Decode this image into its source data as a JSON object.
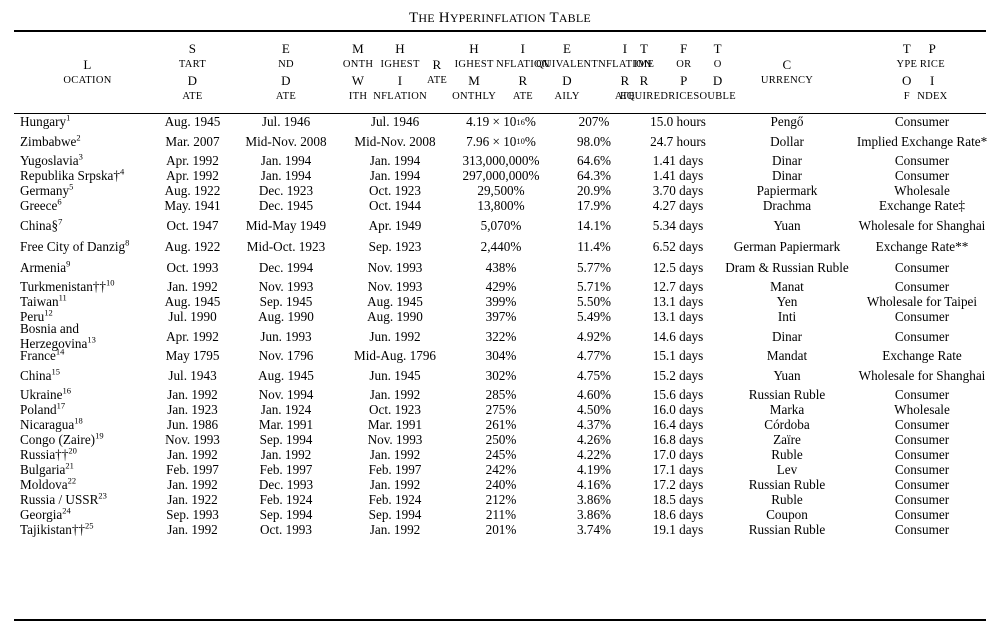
{
  "title": "The Hyperinflation Table",
  "headers": [
    {
      "key": "location",
      "label": "Location"
    },
    {
      "key": "start",
      "label": "Start Date"
    },
    {
      "key": "end",
      "label": "End Date"
    },
    {
      "key": "month_highest",
      "label": "Month With Highest Inflation Rate"
    },
    {
      "key": "monthly",
      "label": "Highest Monthly Inflation Rate"
    },
    {
      "key": "daily",
      "label": "Equivalent Daily Inflation Rate"
    },
    {
      "key": "double",
      "label": "Time Required For Prices To Double"
    },
    {
      "key": "currency",
      "label": "Currency"
    },
    {
      "key": "index",
      "label": "Type of Price Index"
    }
  ],
  "rows": [
    {
      "location": "Hungary",
      "note": "1",
      "start": "Aug. 1945",
      "end": "Jul. 1946",
      "month": "Jul. 1946",
      "monthly": "4.19 × 10",
      "monthly_exp": "16",
      "monthly_suffix": "%",
      "daily": "207%",
      "double": "15.0 hours",
      "currency": "Pengő",
      "index": "Consumer"
    },
    {
      "location": "Zimbabwe",
      "note": "2",
      "start": "Mar. 2007",
      "end": "Mid-Nov. 2008",
      "month": "Mid-Nov. 2008",
      "monthly": "7.96 × 10",
      "monthly_exp": "10",
      "monthly_suffix": "%",
      "daily": "98.0%",
      "double": "24.7 hours",
      "currency": "Dollar",
      "index": "Implied Exchange Rate*"
    },
    {
      "location": "Yugoslavia",
      "note": "3",
      "start": "Apr. 1992",
      "end": "Jan. 1994",
      "month": "Jan. 1994",
      "monthly": "313,000,000%",
      "daily": "64.6%",
      "double": "1.41 days",
      "currency": "Dinar",
      "index": "Consumer"
    },
    {
      "location": "Republika Srpska†",
      "note": "4",
      "start": "Apr. 1992",
      "end": "Jan. 1994",
      "month": "Jan. 1994",
      "monthly": "297,000,000%",
      "daily": "64.3%",
      "double": "1.41 days",
      "currency": "Dinar",
      "index": "Consumer"
    },
    {
      "location": "Germany",
      "note": "5",
      "start": "Aug. 1922",
      "end": "Dec. 1923",
      "month": "Oct. 1923",
      "monthly": "29,500%",
      "daily": "20.9%",
      "double": "3.70 days",
      "currency": "Papiermark",
      "index": "Wholesale"
    },
    {
      "location": "Greece",
      "note": "6",
      "start": "May. 1941",
      "end": "Dec. 1945",
      "month": "Oct. 1944",
      "monthly": "13,800%",
      "daily": "17.9%",
      "double": "4.27 days",
      "currency": "Drachma",
      "index": "Exchange Rate‡"
    },
    {
      "location": "China§",
      "note": "7",
      "start": "Oct. 1947",
      "end": "Mid-May 1949",
      "month": "Apr. 1949",
      "monthly": "5,070%",
      "daily": "14.1%",
      "double": "5.34 days",
      "currency": "Yuan",
      "index": "Wholesale for Shanghai"
    },
    {
      "location": "Free City of Danzig",
      "note": "8",
      "start": "Aug. 1922",
      "end": "Mid-Oct. 1923",
      "month": "Sep. 1923",
      "monthly": "2,440%",
      "daily": "11.4%",
      "double": "6.52 days",
      "currency": "German Papiermark",
      "index": "Exchange Rate**"
    },
    {
      "location": "Armenia",
      "note": "9",
      "start": "Oct. 1993",
      "end": "Dec. 1994",
      "month": "Nov. 1993",
      "monthly": "438%",
      "daily": "5.77%",
      "double": "12.5 days",
      "currency": "Dram & Russian Ruble",
      "index": "Consumer"
    },
    {
      "location": "Turkmenistan††",
      "note": "10",
      "start": "Jan. 1992",
      "end": "Nov. 1993",
      "month": "Nov. 1993",
      "monthly": "429%",
      "daily": "5.71%",
      "double": "12.7 days",
      "currency": "Manat",
      "index": "Consumer"
    },
    {
      "location": "Taiwan",
      "note": "11",
      "start": "Aug. 1945",
      "end": "Sep. 1945",
      "month": "Aug. 1945",
      "monthly": "399%",
      "daily": "5.50%",
      "double": "13.1 days",
      "currency": "Yen",
      "index": "Wholesale for Taipei"
    },
    {
      "location": "Peru",
      "note": "12",
      "start": "Jul. 1990",
      "end": "Aug. 1990",
      "month": "Aug. 1990",
      "monthly": "397%",
      "daily": "5.49%",
      "double": "13.1 days",
      "currency": "Inti",
      "index": "Consumer"
    },
    {
      "location": "Bosnia and Herzegovina",
      "note": "13",
      "start": "Apr. 1992",
      "end": "Jun. 1993",
      "month": "Jun. 1992",
      "monthly": "322%",
      "daily": "4.92%",
      "double": "14.6 days",
      "currency": "Dinar",
      "index": "Consumer"
    },
    {
      "location": "France",
      "note": "14",
      "start": "May 1795",
      "end": "Nov. 1796",
      "month": "Mid-Aug. 1796",
      "monthly": "304%",
      "daily": "4.77%",
      "double": "15.1 days",
      "currency": "Mandat",
      "index": "Exchange Rate"
    },
    {
      "location": "China",
      "note": "15",
      "start": "Jul. 1943",
      "end": "Aug. 1945",
      "month": "Jun. 1945",
      "monthly": "302%",
      "daily": "4.75%",
      "double": "15.2 days",
      "currency": "Yuan",
      "index": "Wholesale for Shanghai"
    },
    {
      "location": "Ukraine",
      "note": "16",
      "start": "Jan. 1992",
      "end": "Nov. 1994",
      "month": "Jan. 1992",
      "monthly": "285%",
      "daily": "4.60%",
      "double": "15.6 days",
      "currency": "Russian Ruble",
      "index": "Consumer"
    },
    {
      "location": "Poland",
      "note": "17",
      "start": "Jan. 1923",
      "end": "Jan. 1924",
      "month": "Oct. 1923",
      "monthly": "275%",
      "daily": "4.50%",
      "double": "16.0 days",
      "currency": "Marka",
      "index": "Wholesale"
    },
    {
      "location": "Nicaragua",
      "note": "18",
      "start": "Jun. 1986",
      "end": "Mar. 1991",
      "month": "Mar. 1991",
      "monthly": "261%",
      "daily": "4.37%",
      "double": "16.4 days",
      "currency": "Córdoba",
      "index": "Consumer"
    },
    {
      "location": "Congo (Zaire)",
      "note": "19",
      "start": "Nov. 1993",
      "end": "Sep. 1994",
      "month": "Nov. 1993",
      "monthly": "250%",
      "daily": "4.26%",
      "double": "16.8 days",
      "currency": "Zaïre",
      "index": "Consumer"
    },
    {
      "location": "Russia††",
      "note": "20",
      "start": "Jan. 1992",
      "end": "Jan. 1992",
      "month": "Jan. 1992",
      "monthly": "245%",
      "daily": "4.22%",
      "double": "17.0 days",
      "currency": "Ruble",
      "index": "Consumer"
    },
    {
      "location": "Bulgaria",
      "note": "21",
      "start": "Feb. 1997",
      "end": "Feb. 1997",
      "month": "Feb. 1997",
      "monthly": "242%",
      "daily": "4.19%",
      "double": "17.1 days",
      "currency": "Lev",
      "index": "Consumer"
    },
    {
      "location": "Moldova",
      "note": "22",
      "start": "Jan. 1992",
      "end": "Dec. 1993",
      "month": "Jan. 1992",
      "monthly": "240%",
      "daily": "4.16%",
      "double": "17.2 days",
      "currency": "Russian Ruble",
      "index": "Consumer"
    },
    {
      "location": "Russia / USSR",
      "note": "23",
      "start": "Jan. 1922",
      "end": "Feb. 1924",
      "month": "Feb. 1924",
      "monthly": "212%",
      "daily": "3.86%",
      "double": "18.5 days",
      "currency": "Ruble",
      "index": "Consumer"
    },
    {
      "location": "Georgia",
      "note": "24",
      "start": "Sep. 1993",
      "end": "Sep. 1994",
      "month": "Sep. 1994",
      "monthly": "211%",
      "daily": "3.86%",
      "double": "18.6 days",
      "currency": "Coupon",
      "index": "Consumer"
    },
    {
      "location": "Tajikistan††",
      "note": "25",
      "start": "Jan. 1992",
      "end": "Oct. 1993",
      "month": "Jan. 1992",
      "monthly": "201%",
      "daily": "3.74%",
      "double": "19.1 days",
      "currency": "Russian Ruble",
      "index": "Consumer"
    }
  ]
}
